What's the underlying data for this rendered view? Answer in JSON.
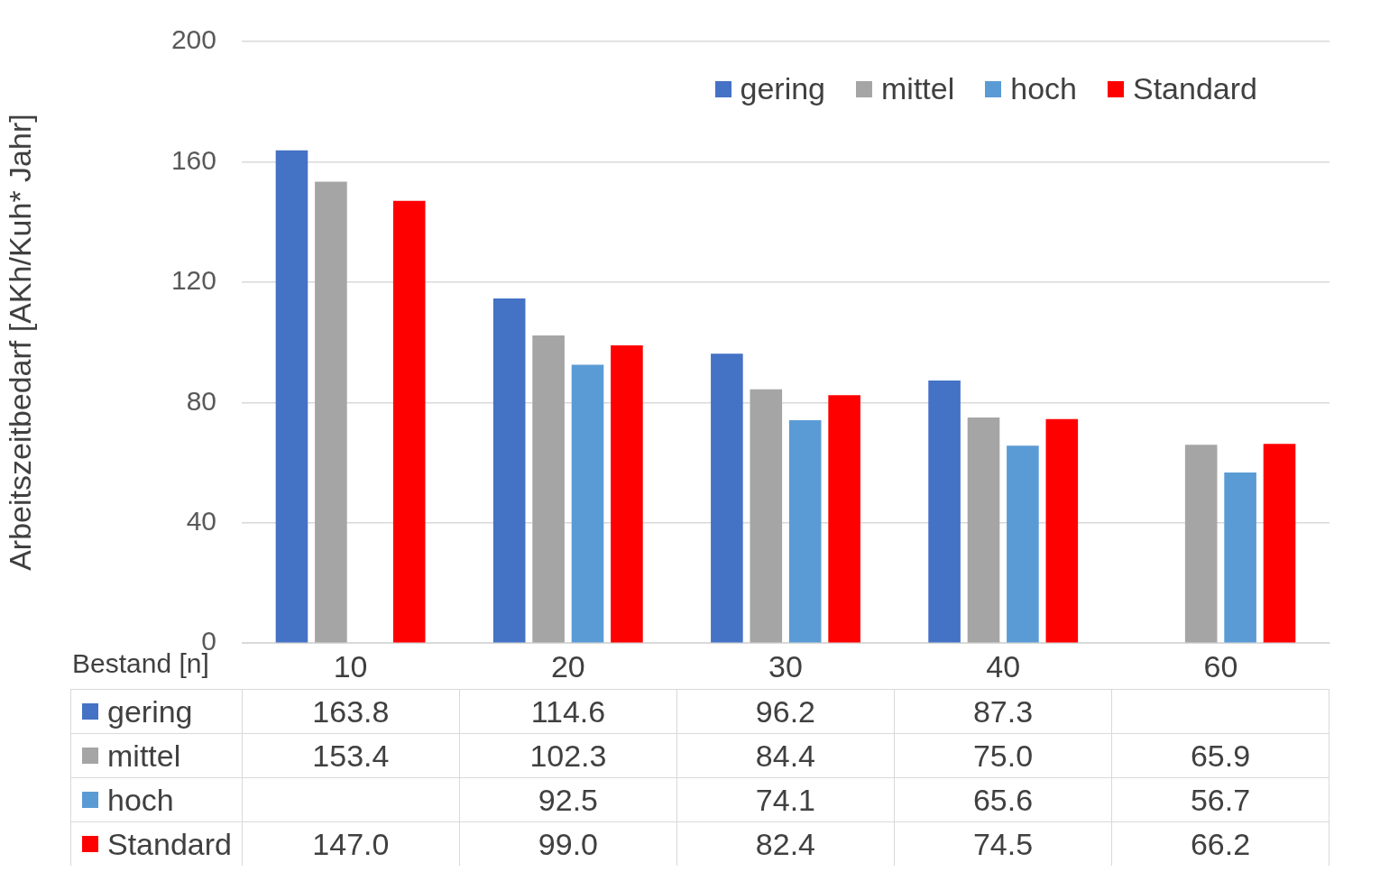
{
  "chart_data": {
    "type": "bar",
    "xlabel": "Bestand  [n]",
    "ylabel": "Arbeitszeitbedarf [AKh/Kuh* Jahr]",
    "categories": [
      "10",
      "20",
      "30",
      "40",
      "60"
    ],
    "series": [
      {
        "name": "gering",
        "color": "#4472c4",
        "values": [
          163.8,
          114.6,
          96.2,
          87.3,
          null
        ],
        "value_labels": [
          "163.8",
          "114.6",
          "96.2",
          "87.3",
          null
        ]
      },
      {
        "name": "mittel",
        "color": "#a5a5a5",
        "values": [
          153.4,
          102.3,
          84.4,
          75.0,
          65.9
        ],
        "value_labels": [
          "153.4",
          "102.3",
          "84.4",
          "75.0",
          "65.9"
        ]
      },
      {
        "name": "hoch",
        "color": "#5b9bd5",
        "values": [
          null,
          92.5,
          74.1,
          65.6,
          56.7
        ],
        "value_labels": [
          null,
          "92.5",
          "74.1",
          "65.6",
          "56.7"
        ]
      },
      {
        "name": "Standard",
        "color": "#ff0000",
        "values": [
          147.0,
          99.0,
          82.4,
          74.5,
          66.2
        ],
        "value_labels": [
          "147.0",
          "99.0",
          "82.4",
          "74.5",
          "66.2"
        ]
      }
    ],
    "ylim": [
      0,
      200
    ],
    "yticks": [
      0,
      40,
      80,
      120,
      160,
      200
    ],
    "grid": "y",
    "legend": "top right"
  }
}
